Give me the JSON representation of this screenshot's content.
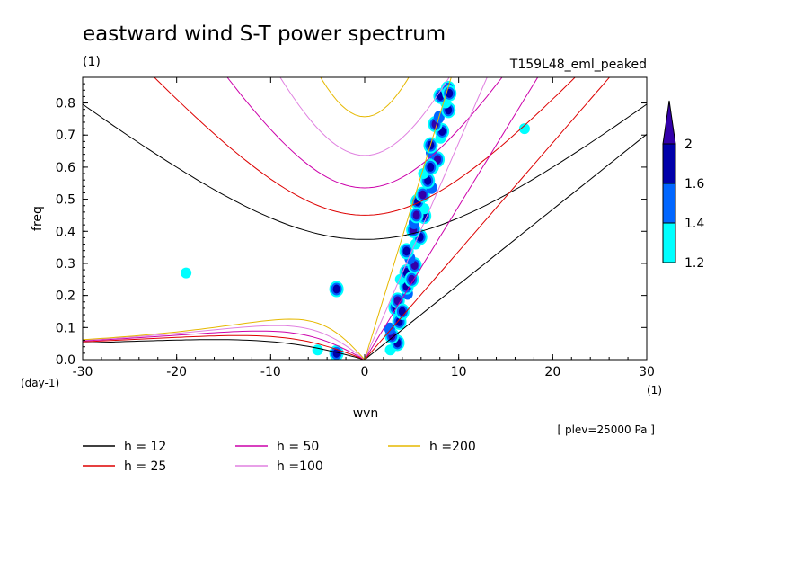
{
  "chart_data": {
    "type": "contour",
    "title": "eastward wind S-T power spectrum",
    "units": "(1)",
    "run_label": "T159L48_eml_peaked",
    "xlabel": "wvn",
    "ylabel": "freq",
    "x_units": "(1)",
    "y_units": "(day-1)",
    "level_note": "[ plev=25000 Pa ]",
    "xlim": [
      -30,
      30
    ],
    "ylim": [
      0,
      0.88
    ],
    "x_ticks": [
      -30,
      -20,
      -10,
      0,
      10,
      20,
      30
    ],
    "x_tick_labels": [
      "-30",
      "-20",
      "-10",
      "0",
      "10",
      "20",
      "30"
    ],
    "y_ticks": [
      0,
      0.1,
      0.2,
      0.3,
      0.4,
      0.5,
      0.6,
      0.7,
      0.8
    ],
    "y_tick_labels": [
      "0.0",
      "0.1",
      "0.2",
      "0.3",
      "0.4",
      "0.5",
      "0.6",
      "0.7",
      "0.8"
    ],
    "colorbar": {
      "levels": [
        1.2,
        1.4,
        1.6,
        2
      ],
      "labels": [
        "1.2",
        "1.4",
        "1.6",
        "2"
      ],
      "colors": [
        "#00ffff",
        "#0066ff",
        "#0000aa",
        "#3300aa"
      ]
    },
    "dispersion_curves": [
      {
        "name": "h = 12",
        "h": 12,
        "color": "#000000"
      },
      {
        "name": "h = 25",
        "h": 25,
        "color": "#dd0000"
      },
      {
        "name": "h = 50",
        "h": 50,
        "color": "#cc00aa"
      },
      {
        "name": "h =100",
        "h": 100,
        "color": "#e080e0"
      },
      {
        "name": "h =200",
        "h": 200,
        "color": "#e6b800"
      }
    ],
    "power_regions": [
      {
        "wvn": 5.5,
        "freq": 0.45,
        "level": 2
      },
      {
        "wvn": 5,
        "freq": 0.25,
        "level": 2
      },
      {
        "wvn": 4,
        "freq": 0.15,
        "level": 1.6
      },
      {
        "wvn": 7,
        "freq": 0.6,
        "level": 1.6
      },
      {
        "wvn": 9,
        "freq": 0.83,
        "level": 1.6
      },
      {
        "wvn": -3,
        "freq": 0.02,
        "level": 1.6
      },
      {
        "wvn": -3,
        "freq": 0.22,
        "level": 1.6
      },
      {
        "wvn": -5,
        "freq": 0.03,
        "level": 1.2
      },
      {
        "wvn": -19,
        "freq": 0.27,
        "level": 1.2
      },
      {
        "wvn": 17,
        "freq": 0.72,
        "level": 1.2
      }
    ]
  }
}
